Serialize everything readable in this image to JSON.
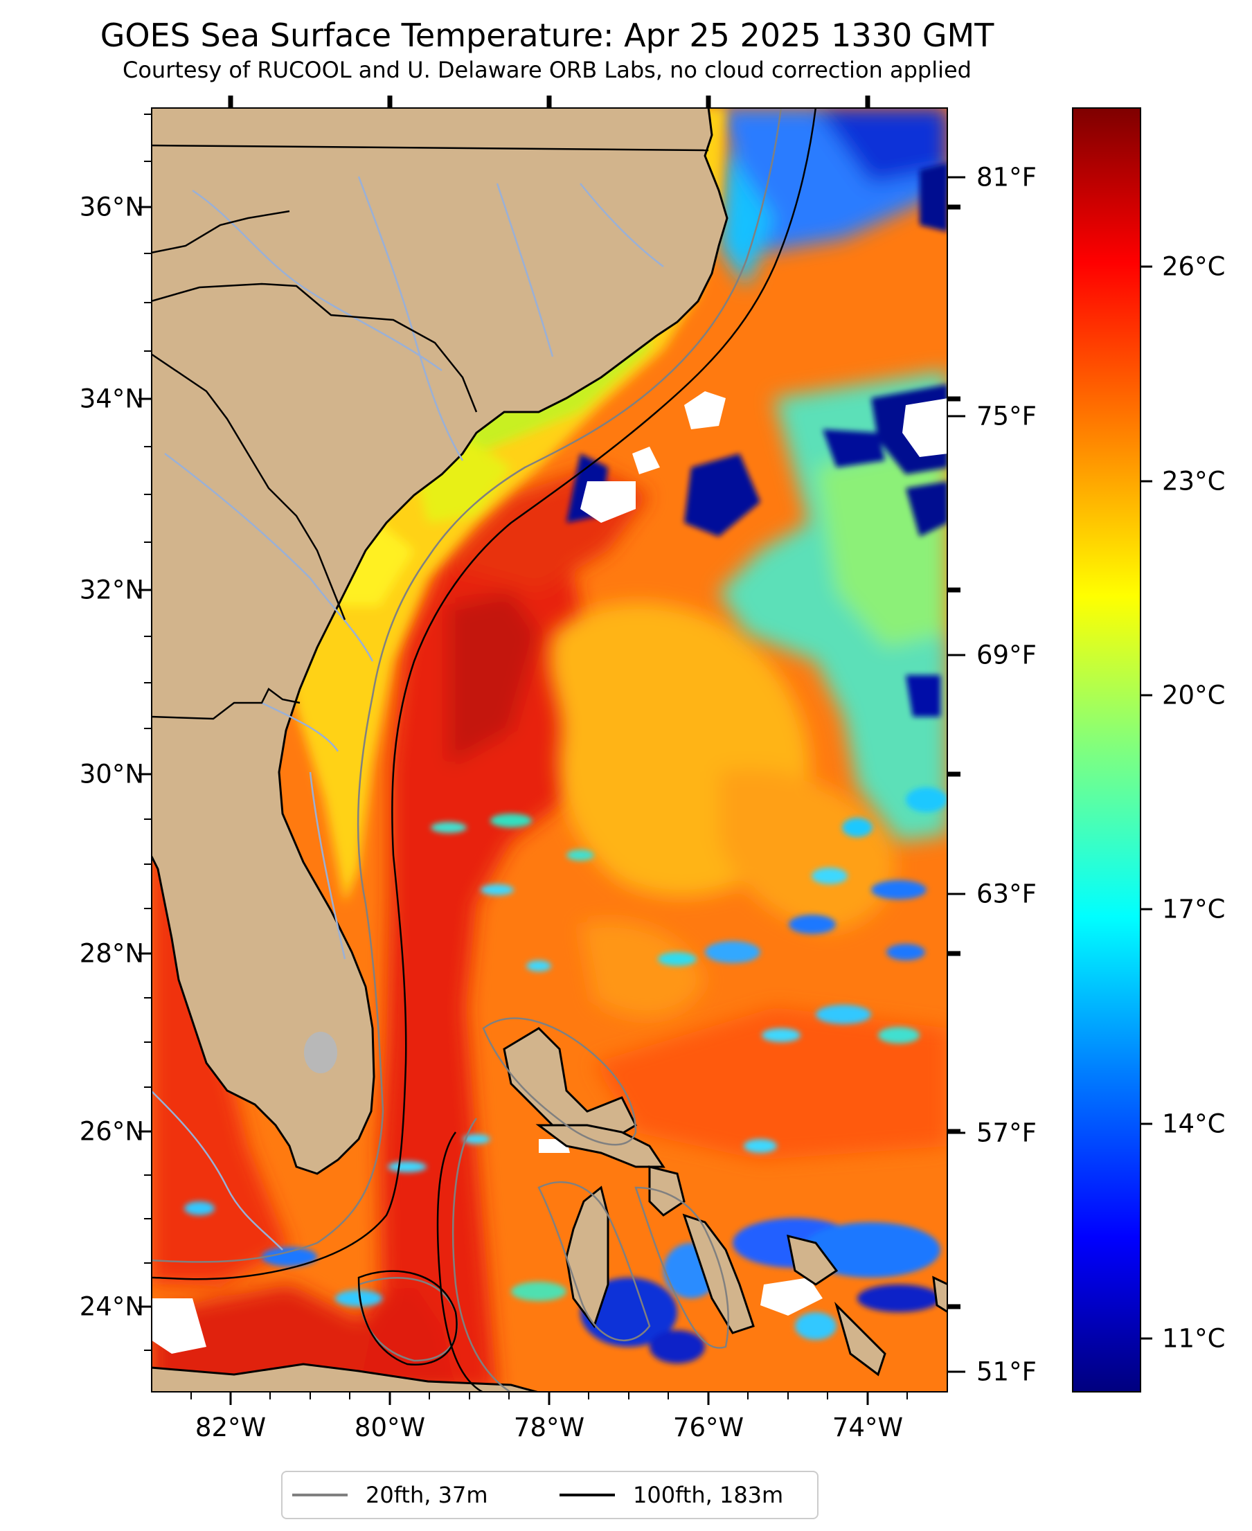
{
  "title": "GOES Sea Surface Temperature: Apr 25 2025 1330 GMT",
  "subtitle": "Courtesy of RUCOOL and U. Delaware ORB Labs, no cloud correction applied",
  "map": {
    "lat_range": [
      23.1,
      37.1
    ],
    "lon_range": [
      -83.0,
      -73.0
    ],
    "land_color": "#d2b48c",
    "river_color": "#9ab0d6",
    "cloud_color": "#ffffff",
    "colormap": "jet",
    "lat_ticks": [
      "36°N",
      "34°N",
      "32°N",
      "30°N",
      "28°N",
      "26°N",
      "24°N"
    ],
    "lon_ticks": [
      "82°W",
      "80°W",
      "78°W",
      "76°W",
      "74°W"
    ]
  },
  "colorbar": {
    "range_c": [
      9.5,
      28.5
    ],
    "celsius_ticks": [
      "26°C",
      "23°C",
      "20°C",
      "17°C",
      "14°C",
      "11°C"
    ],
    "fahrenheit_ticks": [
      "81°F",
      "75°F",
      "69°F",
      "63°F",
      "57°F",
      "51°F"
    ]
  },
  "legend": {
    "items": [
      {
        "label": "20fth, 37m",
        "color": "#808080"
      },
      {
        "label": "100fth, 183m",
        "color": "#000000"
      }
    ]
  }
}
